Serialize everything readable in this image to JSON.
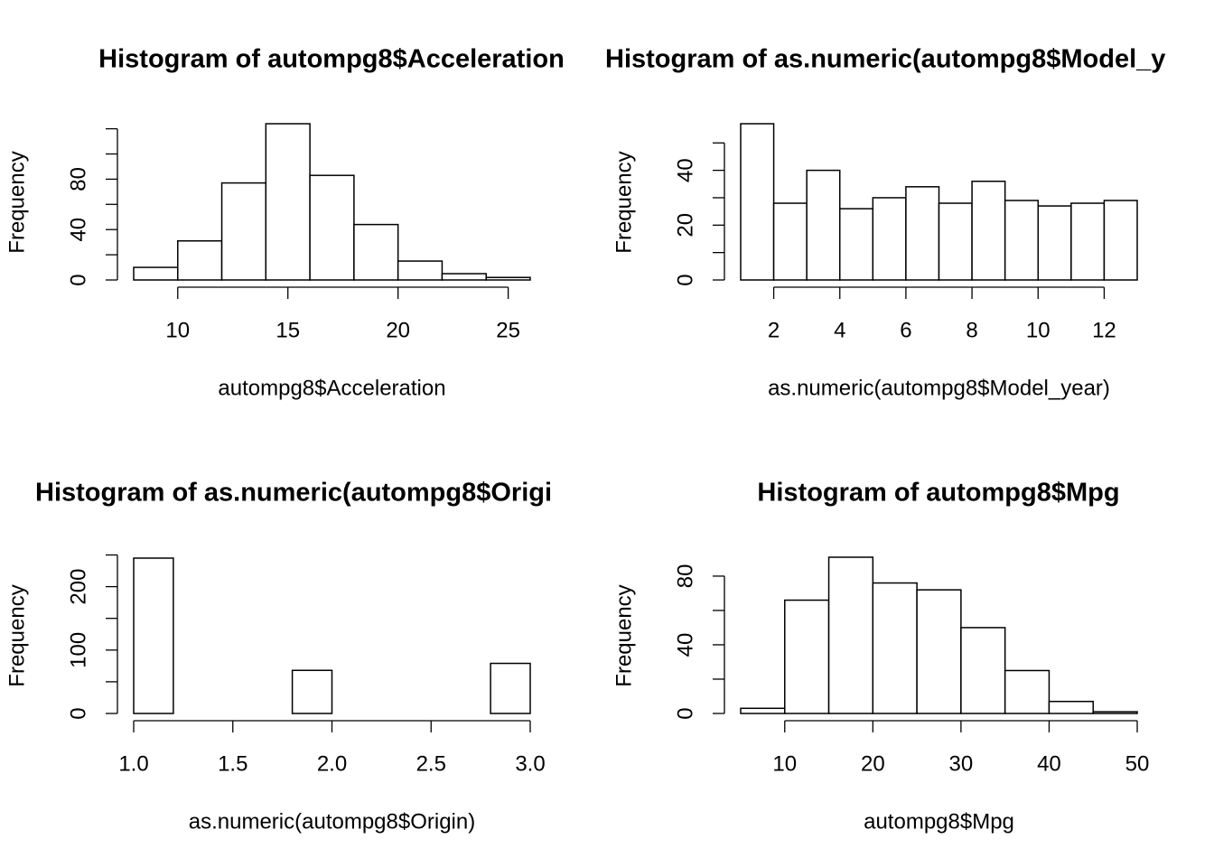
{
  "chart_data": [
    {
      "type": "histogram",
      "title": "Histogram of autompg8$Acceleration",
      "xlabel": "autompg8$Acceleration",
      "ylabel": "Frequency",
      "bins": [
        8,
        10,
        12,
        14,
        16,
        18,
        20,
        22,
        24,
        26
      ],
      "values": [
        10,
        31,
        77,
        124,
        83,
        44,
        15,
        5,
        2
      ],
      "xlim": [
        8,
        26
      ],
      "xticks": [
        10,
        15,
        20,
        25
      ],
      "ylim": [
        0,
        124
      ],
      "yticks": [
        0,
        40,
        80
      ],
      "yminor_ticks": [
        20,
        60,
        100,
        120
      ],
      "color": "#ffffff"
    },
    {
      "type": "histogram",
      "title": "Histogram of as.numeric(autompg8$Model_y",
      "xlabel": "as.numeric(autompg8$Model_year)",
      "ylabel": "Frequency",
      "bins": [
        1,
        2,
        3,
        4,
        5,
        6,
        7,
        8,
        9,
        10,
        11,
        12,
        13
      ],
      "values": [
        57,
        28,
        40,
        26,
        30,
        34,
        28,
        36,
        29,
        27,
        28,
        29
      ],
      "xlim": [
        1,
        13
      ],
      "xticks": [
        2,
        4,
        6,
        8,
        10,
        12
      ],
      "ylim": [
        0,
        57
      ],
      "yticks": [
        0,
        20,
        40
      ],
      "yminor_ticks": [
        10,
        30,
        50
      ],
      "color": "#ffffff"
    },
    {
      "type": "histogram",
      "title": "Histogram of as.numeric(autompg8$Origi",
      "xlabel": "as.numeric(autompg8$Origin)",
      "ylabel": "Frequency",
      "bins": [
        1.0,
        1.2,
        1.4,
        1.6,
        1.8,
        2.0,
        2.2,
        2.4,
        2.6,
        2.8,
        3.0
      ],
      "values": [
        245,
        0,
        0,
        0,
        68,
        0,
        0,
        0,
        0,
        79
      ],
      "xlim": [
        1,
        3
      ],
      "xticks": [
        {
          "value": 1,
          "label": "1.0"
        },
        1.5,
        {
          "value": 2,
          "label": "2.0"
        },
        2.5,
        {
          "value": 3,
          "label": "3.0"
        }
      ],
      "ylim": [
        0,
        245
      ],
      "yticks": [
        0,
        100,
        200
      ],
      "yminor_ticks": [
        50,
        150,
        250
      ],
      "color": "#ffffff"
    },
    {
      "type": "histogram",
      "title": "Histogram of autompg8$Mpg",
      "xlabel": "autompg8$Mpg",
      "ylabel": "Frequency",
      "bins": [
        5,
        10,
        15,
        20,
        25,
        30,
        35,
        40,
        45,
        50
      ],
      "values": [
        3,
        66,
        91,
        76,
        72,
        50,
        25,
        7,
        1
      ],
      "xlim": [
        5,
        50
      ],
      "xticks": [
        10,
        20,
        30,
        40,
        50
      ],
      "ylim": [
        0,
        91
      ],
      "yticks": [
        0,
        40,
        80
      ],
      "yminor_ticks": [
        20,
        60
      ],
      "color": "#ffffff"
    }
  ]
}
